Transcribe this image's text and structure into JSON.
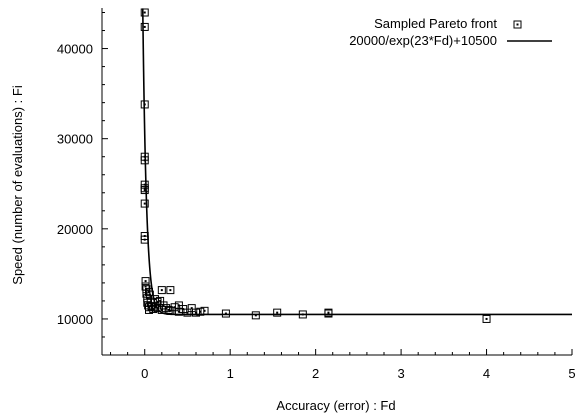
{
  "chart_data": {
    "type": "scatter",
    "title": "",
    "xlabel": "Accuracy (error) : Fd",
    "ylabel": "Speed (number of evaluations) : Fi",
    "xlim": [
      -0.5,
      5
    ],
    "ylim": [
      6000,
      44500
    ],
    "x_ticks": [
      0,
      1,
      2,
      3,
      4,
      5
    ],
    "y_ticks": [
      10000,
      20000,
      30000,
      40000
    ],
    "grid": false,
    "legend_position": "top-right",
    "series": [
      {
        "name": "Sampled Pareto front",
        "marker": "square",
        "points": [
          [
            0.0,
            44000
          ],
          [
            0.0,
            42400
          ],
          [
            0.0,
            33800
          ],
          [
            0.0,
            28000
          ],
          [
            0.0,
            27600
          ],
          [
            0.0,
            24900
          ],
          [
            0.0,
            24500
          ],
          [
            0.0,
            24300
          ],
          [
            0.0,
            22800
          ],
          [
            0.0,
            19200
          ],
          [
            0.0,
            18800
          ],
          [
            0.01,
            14200
          ],
          [
            0.01,
            13600
          ],
          [
            0.02,
            13300
          ],
          [
            0.02,
            12800
          ],
          [
            0.03,
            12300
          ],
          [
            0.03,
            11800
          ],
          [
            0.04,
            11500
          ],
          [
            0.05,
            11300
          ],
          [
            0.05,
            11000
          ],
          [
            0.06,
            12700
          ],
          [
            0.07,
            11800
          ],
          [
            0.08,
            11400
          ],
          [
            0.1,
            11100
          ],
          [
            0.12,
            11300
          ],
          [
            0.15,
            11900
          ],
          [
            0.15,
            11200
          ],
          [
            0.18,
            12000
          ],
          [
            0.2,
            11000
          ],
          [
            0.22,
            11500
          ],
          [
            0.25,
            11200
          ],
          [
            0.28,
            11000
          ],
          [
            0.3,
            13200
          ],
          [
            0.3,
            10900
          ],
          [
            0.35,
            11300
          ],
          [
            0.4,
            10800
          ],
          [
            0.4,
            11500
          ],
          [
            0.5,
            10700
          ],
          [
            0.55,
            11200
          ],
          [
            0.6,
            10700
          ],
          [
            0.65,
            10800
          ],
          [
            0.7,
            10900
          ],
          [
            0.95,
            10600
          ],
          [
            1.3,
            10400
          ],
          [
            1.55,
            10700
          ],
          [
            1.85,
            10500
          ],
          [
            2.15,
            10700
          ],
          [
            2.15,
            10600
          ],
          [
            4.0,
            10000
          ],
          [
            0.2,
            13200
          ],
          [
            0.05,
            13000
          ],
          [
            0.12,
            12200
          ],
          [
            0.45,
            11100
          ]
        ]
      },
      {
        "name": "20000/exp(23*Fd)+10500",
        "type": "line",
        "formula": "20000/exp(23*Fd)+10500"
      }
    ]
  }
}
